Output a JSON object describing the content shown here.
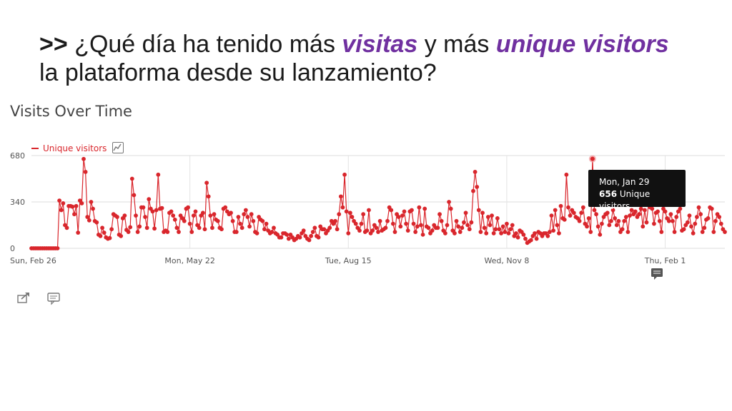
{
  "slide": {
    "prefix": ">> ",
    "question_a": "¿Qué día ha tenido más ",
    "emph_1": "visitas",
    "question_b": " y más ",
    "emph_2": "unique visitors",
    "question_c": "la plataforma desde su lanzamiento?"
  },
  "widget": {
    "title": "Visits Over Time",
    "legend_label": "Unique visitors",
    "tooltip_date": "Mon, Jan 29",
    "tooltip_value": "656",
    "tooltip_unit": "Unique visitors"
  },
  "icons": {
    "chart_type": "line-chart-icon",
    "annotation": "comment-icon",
    "export": "share-export-icon",
    "comment": "comment-icon"
  },
  "colors": {
    "series": "#d9262c",
    "accent_text": "#7030a0",
    "tooltip_bg": "#111111"
  },
  "chart_data": {
    "type": "line",
    "title": "Visits Over Time",
    "xlabel": "",
    "ylabel": "",
    "ylim": [
      0,
      680
    ],
    "yticks": [
      0,
      340,
      680
    ],
    "xticks": [
      {
        "index": 0,
        "label": "Sun, Feb 26"
      },
      {
        "index": 85,
        "label": "Mon, May 22"
      },
      {
        "index": 170,
        "label": "Tue, Aug 15"
      },
      {
        "index": 255,
        "label": "Wed, Nov 8"
      },
      {
        "index": 340,
        "label": "Thu, Feb 1"
      }
    ],
    "grid": true,
    "legend": "top-left",
    "series": [
      {
        "name": "Unique visitors",
        "values": [
          0,
          0,
          0,
          0,
          0,
          0,
          0,
          0,
          0,
          0,
          0,
          0,
          0,
          0,
          0,
          350,
          280,
          330,
          170,
          150,
          310,
          310,
          305,
          250,
          310,
          115,
          350,
          330,
          655,
          560,
          230,
          205,
          340,
          290,
          200,
          190,
          100,
          90,
          150,
          115,
          80,
          70,
          75,
          140,
          250,
          240,
          230,
          100,
          90,
          220,
          240,
          135,
          120,
          155,
          510,
          390,
          240,
          120,
          160,
          300,
          300,
          230,
          150,
          360,
          290,
          270,
          145,
          280,
          540,
          290,
          295,
          120,
          130,
          120,
          260,
          270,
          240,
          210,
          150,
          120,
          240,
          220,
          200,
          290,
          300,
          180,
          120,
          240,
          270,
          170,
          150,
          240,
          260,
          140,
          480,
          380,
          240,
          150,
          250,
          210,
          200,
          150,
          140,
          290,
          300,
          270,
          250,
          260,
          200,
          120,
          120,
          230,
          180,
          150,
          250,
          280,
          230,
          160,
          250,
          200,
          120,
          110,
          230,
          210,
          200,
          140,
          180,
          130,
          110,
          120,
          150,
          110,
          100,
          80,
          80,
          110,
          110,
          100,
          70,
          100,
          80,
          60,
          70,
          90,
          80,
          110,
          130,
          90,
          70,
          60,
          90,
          120,
          150,
          90,
          80,
          160,
          140,
          140,
          110,
          130,
          150,
          200,
          180,
          200,
          140,
          250,
          380,
          300,
          540,
          270,
          110,
          260,
          230,
          200,
          180,
          150,
          130,
          180,
          250,
          120,
          130,
          280,
          110,
          130,
          170,
          150,
          120,
          200,
          130,
          140,
          150,
          200,
          300,
          280,
          180,
          120,
          250,
          230,
          160,
          240,
          270,
          180,
          130,
          270,
          280,
          180,
          120,
          160,
          300,
          170,
          100,
          290,
          160,
          150,
          110,
          130,
          170,
          150,
          150,
          250,
          200,
          130,
          110,
          170,
          340,
          290,
          130,
          110,
          200,
          160,
          120,
          150,
          190,
          260,
          170,
          140,
          190,
          420,
          560,
          450,
          280,
          120,
          260,
          150,
          110,
          230,
          170,
          240,
          110,
          140,
          220,
          140,
          110,
          160,
          120,
          180,
          110,
          140,
          170,
          90,
          110,
          80,
          130,
          120,
          100,
          70,
          40,
          50,
          60,
          90,
          110,
          70,
          120,
          110,
          90,
          110,
          110,
          90,
          120,
          240,
          130,
          280,
          170,
          110,
          310,
          220,
          210,
          540,
          300,
          240,
          280,
          260,
          230,
          220,
          200,
          260,
          300,
          180,
          160,
          220,
          120,
          656,
          280,
          250,
          160,
          100,
          180,
          230,
          250,
          260,
          170,
          200,
          280,
          220,
          170,
          200,
          120,
          140,
          200,
          230,
          120,
          240,
          280,
          250,
          270,
          230,
          250,
          290,
          160,
          280,
          190,
          320,
          300,
          290,
          180,
          260,
          270,
          200,
          120,
          290,
          270,
          220,
          200,
          250,
          200,
          120,
          230,
          270,
          290,
          130,
          140,
          170,
          190,
          240,
          160,
          110,
          180,
          230,
          300,
          250,
          120,
          150,
          210,
          220,
          300,
          290,
          120,
          200,
          250,
          230,
          180,
          140,
          120
        ]
      }
    ],
    "highlight": {
      "label": "Mon, Jan 29",
      "value": 656
    }
  }
}
